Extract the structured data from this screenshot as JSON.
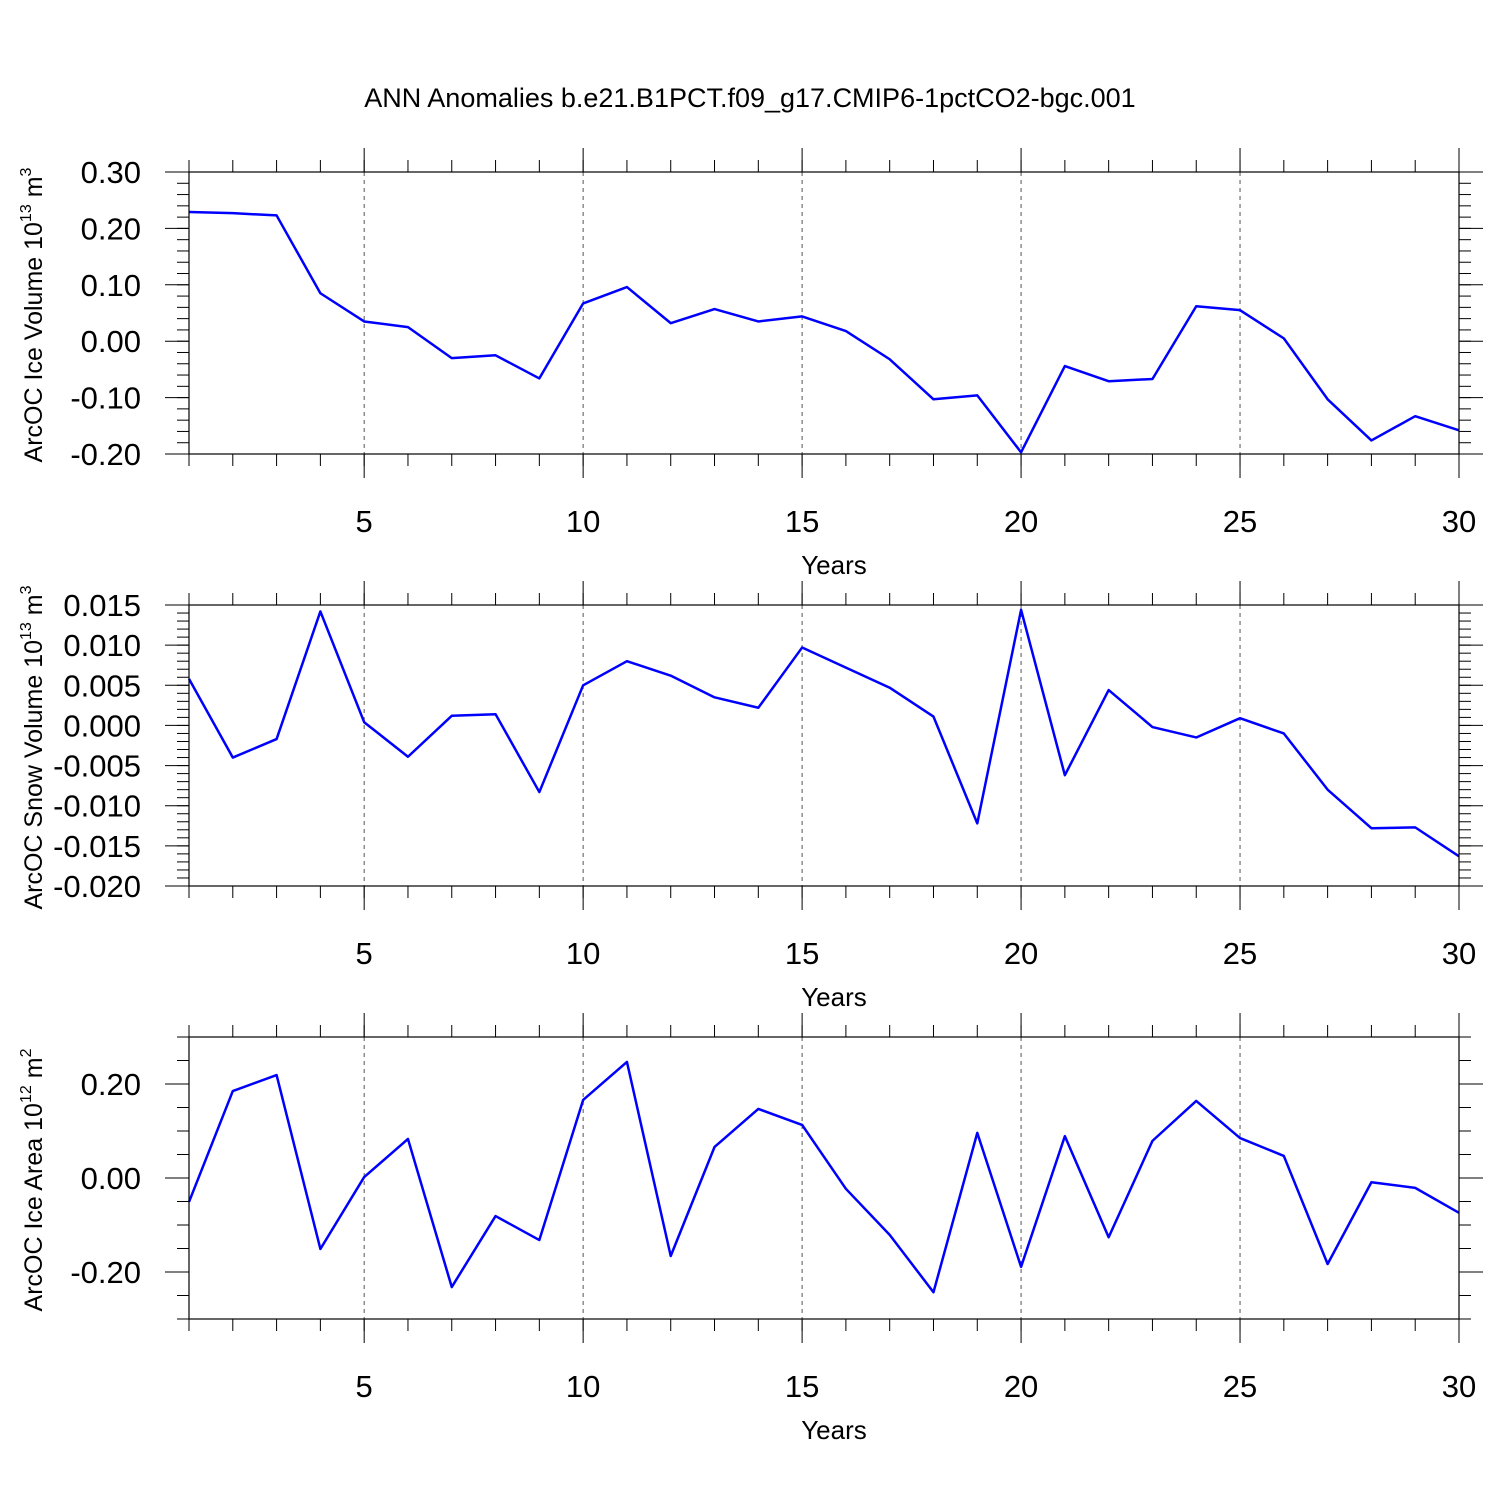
{
  "title": "ANN Anomalies b.e21.B1PCT.f09_g17.CMIP6-1pctCO2-bgc.001",
  "chart_data": [
    {
      "type": "line",
      "ylabel": {
        "text": "ArcOC Ice Volume 10",
        "exponent": "13",
        "unit": "m",
        "unit_exponent": "3"
      },
      "xlabel": "Years",
      "x": [
        1,
        2,
        3,
        4,
        5,
        6,
        7,
        8,
        9,
        10,
        11,
        12,
        13,
        14,
        15,
        16,
        17,
        18,
        19,
        20,
        21,
        22,
        23,
        24,
        25,
        26,
        27,
        28,
        29,
        30
      ],
      "xlim": [
        1,
        30
      ],
      "xticks": [
        5,
        10,
        15,
        20,
        25,
        30
      ],
      "ylim": [
        -0.2,
        0.3
      ],
      "yticks": [
        {
          "value": -0.2,
          "label": "-0.20"
        },
        {
          "value": -0.1,
          "label": "-0.10"
        },
        {
          "value": 0,
          "label": "0.00"
        },
        {
          "value": 0.1,
          "label": "0.10"
        },
        {
          "value": 0.2,
          "label": "0.20"
        },
        {
          "value": 0.3,
          "label": "0.30"
        }
      ],
      "grid": true,
      "series": [
        {
          "color": "#0000ff",
          "values": [
            0.229,
            0.227,
            0.223,
            0.085,
            0.035,
            0.025,
            -0.03,
            -0.025,
            -0.066,
            0.067,
            0.096,
            0.032,
            0.057,
            0.035,
            0.044,
            0.018,
            -0.032,
            -0.103,
            -0.096,
            -0.197,
            -0.044,
            -0.071,
            -0.067,
            0.062,
            0.055,
            0.005,
            -0.103,
            -0.176,
            -0.133,
            -0.158
          ]
        }
      ]
    },
    {
      "type": "line",
      "ylabel": {
        "text": "ArcOC Snow Volume 10",
        "exponent": "13",
        "unit": "m",
        "unit_exponent": "3"
      },
      "xlabel": "Years",
      "x": [
        1,
        2,
        3,
        4,
        5,
        6,
        7,
        8,
        9,
        10,
        11,
        12,
        13,
        14,
        15,
        16,
        17,
        18,
        19,
        20,
        21,
        22,
        23,
        24,
        25,
        26,
        27,
        28,
        29,
        30
      ],
      "xlim": [
        1,
        30
      ],
      "xticks": [
        5,
        10,
        15,
        20,
        25,
        30
      ],
      "ylim": [
        -0.02,
        0.015
      ],
      "yticks": [
        {
          "value": -0.02,
          "label": "-0.020"
        },
        -0.015,
        {
          "value": -0.01,
          "label": "-0.010"
        },
        -0.005,
        {
          "value": 0,
          "label": "0.000"
        },
        0.005,
        {
          "value": 0.01,
          "label": "0.010"
        },
        0.015
      ],
      "grid": true,
      "series": [
        {
          "color": "#0000ff",
          "values": [
            0.0058,
            -0.004,
            -0.0017,
            0.0142,
            0.0004,
            -0.0039,
            0.0012,
            0.0014,
            -0.0083,
            0.005,
            0.008,
            0.0062,
            0.0035,
            0.0022,
            0.0097,
            0.0072,
            0.0047,
            0.0011,
            -0.0122,
            0.0144,
            -0.0062,
            0.0044,
            -0.0002,
            -0.0015,
            0.0009,
            -0.001,
            -0.008,
            -0.0128,
            -0.0127,
            -0.0163
          ]
        }
      ]
    },
    {
      "type": "line",
      "ylabel": {
        "text": "ArcOC Ice Area 10",
        "exponent": "12",
        "unit": "m",
        "unit_exponent": "2"
      },
      "xlabel": "Years",
      "x": [
        1,
        2,
        3,
        4,
        5,
        6,
        7,
        8,
        9,
        10,
        11,
        12,
        13,
        14,
        15,
        16,
        17,
        18,
        19,
        20,
        21,
        22,
        23,
        24,
        25,
        26,
        27,
        28,
        29,
        30
      ],
      "xlim": [
        1,
        30
      ],
      "xticks": [
        5,
        10,
        15,
        20,
        25,
        30
      ],
      "ylim": [
        -0.3,
        0.3
      ],
      "yticks": [
        {
          "value": -0.2,
          "label": "-0.20"
        },
        {
          "value": 0,
          "label": "0.00"
        },
        {
          "value": 0.2,
          "label": "0.20"
        }
      ],
      "grid": true,
      "series": [
        {
          "color": "#0000ff",
          "values": [
            -0.051,
            0.185,
            0.219,
            -0.151,
            0.002,
            0.083,
            -0.232,
            -0.081,
            -0.132,
            0.166,
            0.247,
            -0.166,
            0.066,
            0.147,
            0.113,
            -0.023,
            -0.121,
            -0.243,
            0.096,
            -0.189,
            0.089,
            -0.126,
            0.079,
            0.164,
            0.085,
            0.047,
            -0.183,
            -0.009,
            -0.021,
            -0.074
          ]
        }
      ]
    }
  ]
}
